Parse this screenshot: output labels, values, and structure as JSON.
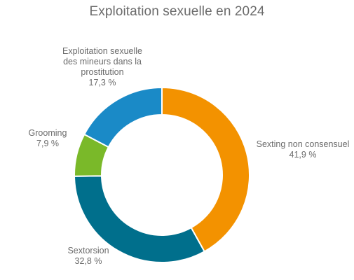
{
  "chart_data": {
    "type": "pie",
    "variant": "donut",
    "title": "Exploitation sexuelle en 2024",
    "slices": [
      {
        "name": "Sexting non consensuel",
        "value": 41.9,
        "value_label": "41,9 %",
        "color": "#f39200",
        "label_lines": [
          "Sexting non consensuel",
          "41,9 %"
        ]
      },
      {
        "name": "Sextorsion",
        "value": 32.8,
        "value_label": "32,8 %",
        "color": "#006f8c",
        "label_lines": [
          "Sextorsion",
          "32,8 %"
        ]
      },
      {
        "name": "Grooming",
        "value": 7.9,
        "value_label": "7,9 %",
        "color": "#7ab929",
        "label_lines": [
          "Grooming",
          "7,9 %"
        ]
      },
      {
        "name": "Exploitation sexuelle des mineurs dans la prostitution",
        "value": 17.3,
        "value_label": "17,3 %",
        "color": "#1a8ac7",
        "label_lines": [
          "Exploitation sexuelle",
          "des mineurs dans la",
          "prostitution",
          "17,3 %"
        ]
      }
    ]
  }
}
